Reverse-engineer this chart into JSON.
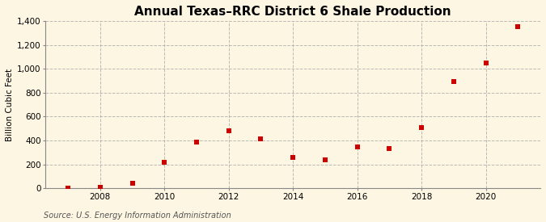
{
  "title": "Annual Texas–RRC District 6 Shale Production",
  "ylabel": "Billion Cubic Feet",
  "source": "Source: U.S. Energy Information Administration",
  "background_color": "#fdf6e3",
  "years": [
    2007,
    2008,
    2009,
    2010,
    2011,
    2012,
    2013,
    2014,
    2015,
    2016,
    2017,
    2018,
    2019,
    2020,
    2021
  ],
  "values": [
    2,
    10,
    45,
    215,
    385,
    480,
    415,
    260,
    240,
    345,
    335,
    510,
    890,
    1045,
    1355
  ],
  "marker_color": "#cc0000",
  "marker": "s",
  "marker_size": 16,
  "ylim": [
    0,
    1400
  ],
  "yticks": [
    0,
    200,
    400,
    600,
    800,
    1000,
    1200,
    1400
  ],
  "ytick_labels": [
    "0",
    "200",
    "400",
    "600",
    "800",
    "1,000",
    "1,200",
    "1,400"
  ],
  "xlim": [
    2006.3,
    2021.7
  ],
  "xticks": [
    2008,
    2010,
    2012,
    2014,
    2016,
    2018,
    2020
  ],
  "grid_color": "#aaaaaa",
  "grid_style": "--",
  "title_fontsize": 11,
  "label_fontsize": 7.5,
  "tick_fontsize": 7.5,
  "source_fontsize": 7
}
